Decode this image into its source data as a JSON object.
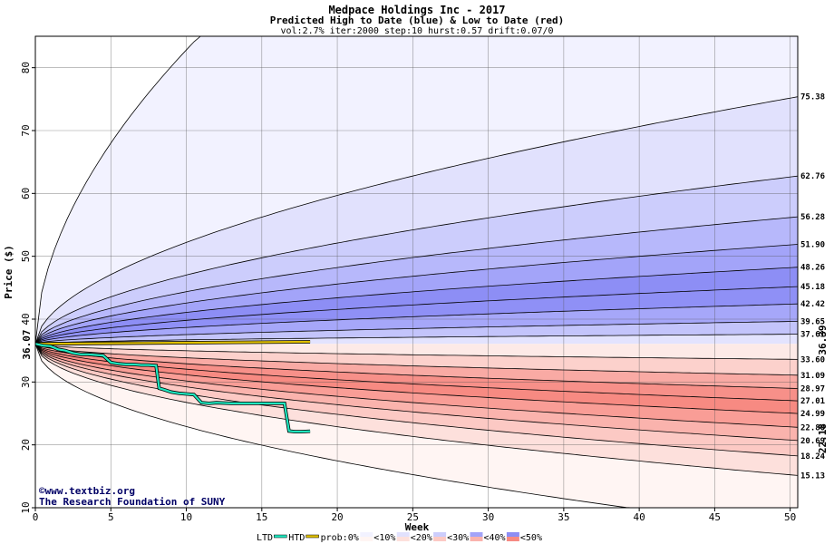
{
  "chart_data": {
    "type": "area",
    "title": "Medpace Holdings Inc - 2017",
    "subtitle": "Predicted High to Date (blue) &  Low to Date (red)",
    "params": "vol:2.7% iter:2000 step:10 hurst:0.57 drift:0.07/0",
    "xlabel": "Week",
    "ylabel": "Price ($)",
    "xlim": [
      0,
      50.5
    ],
    "ylim": [
      10,
      85
    ],
    "x_ticks": [
      0,
      5,
      10,
      15,
      20,
      25,
      30,
      35,
      40,
      45,
      50
    ],
    "y_ticks": [
      10,
      20,
      30,
      40,
      50,
      60,
      70,
      80
    ],
    "grid": true,
    "start_value": 36.07,
    "start_label": "36.07",
    "high_quantiles": [
      {
        "label": "75.38",
        "value": 75.38
      },
      {
        "label": "62.76",
        "value": 62.76
      },
      {
        "label": "56.28",
        "value": 56.28
      },
      {
        "label": "51.90",
        "value": 51.9
      },
      {
        "label": "48.26",
        "value": 48.26
      },
      {
        "label": "45.18",
        "value": 45.18
      },
      {
        "label": "42.42",
        "value": 42.42
      },
      {
        "label": "39.65",
        "value": 39.65
      },
      {
        "label": "37.61",
        "value": 37.61
      }
    ],
    "low_quantiles": [
      {
        "label": "33.60",
        "value": 33.6
      },
      {
        "label": "31.09",
        "value": 31.09
      },
      {
        "label": "28.97",
        "value": 28.97
      },
      {
        "label": "27.01",
        "value": 27.01
      },
      {
        "label": "24.99",
        "value": 24.99
      },
      {
        "label": "22.80",
        "value": 22.8
      },
      {
        "label": "20.69",
        "value": 20.69
      },
      {
        "label": "18.24",
        "value": 18.24
      },
      {
        "label": "15.13",
        "value": 15.13
      }
    ],
    "outer_high": {
      "end_value": 85
    },
    "outer_low": {
      "end_value": 10
    },
    "band_colors_high": [
      "#f2f2ff",
      "#e1e1fd",
      "#cccdfc",
      "#b7b8fb",
      "#a3a4f9",
      "#8d8ef5",
      "#8f90f6",
      "#a6a7f9",
      "#c3c4fb",
      "#e3e3fe"
    ],
    "band_colors_low": [
      "#fff5f3",
      "#fde0dc",
      "#fcc9c4",
      "#fab3ad",
      "#f99d96",
      "#f78a82",
      "#f79089",
      "#f9aaa4",
      "#fcd1cc",
      "#fdeae7"
    ],
    "htd_series": {
      "name": "HTD",
      "color": "#e0c000",
      "x": [
        0,
        18.2
      ],
      "y": [
        36.07,
        36.39
      ]
    },
    "ltd_series": {
      "name": "LTD",
      "color": "#20e8c0",
      "x": [
        0,
        0.5,
        1,
        1.5,
        2,
        2.5,
        3,
        3.5,
        4,
        4.5,
        5,
        5.5,
        6,
        6.5,
        7,
        7.5,
        8,
        8.2,
        8.5,
        9,
        9.5,
        10,
        10.5,
        11,
        11.5,
        12,
        13,
        14,
        15,
        16,
        16.5,
        16.8,
        17.2,
        17.6,
        18.2
      ],
      "y": [
        36.07,
        35.8,
        35.7,
        35.2,
        35.0,
        34.6,
        34.4,
        34.4,
        34.3,
        34.2,
        33.1,
        32.9,
        32.8,
        32.8,
        32.7,
        32.7,
        32.6,
        29.0,
        28.8,
        28.4,
        28.2,
        28.1,
        28.0,
        26.7,
        26.6,
        26.7,
        26.6,
        26.6,
        26.6,
        26.6,
        26.6,
        22.2,
        22.1,
        22.1,
        22.18
      ]
    },
    "right_labels": [
      {
        "text": "36.39",
        "color": "#a08000"
      },
      {
        "text": "22.18",
        "color": "#008060"
      }
    ],
    "legend": {
      "items": [
        "LTD",
        "HTD",
        "prob:0%",
        "<10%",
        "<20%",
        "<30%",
        "<40%",
        "<50%"
      ],
      "placement": "bottom"
    }
  },
  "credits": {
    "line1": "©www.textbiz.org",
    "line2": "The Research Foundation of SUNY"
  }
}
